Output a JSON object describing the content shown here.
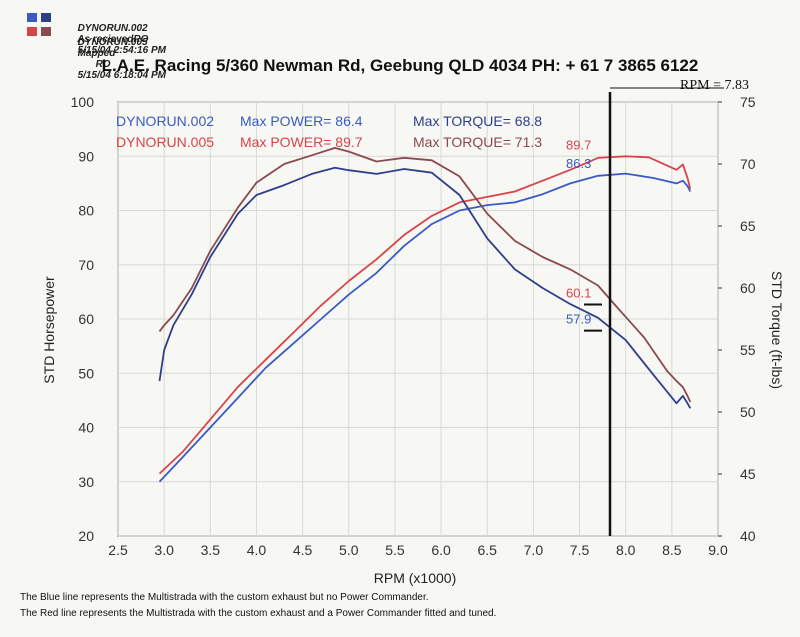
{
  "header": {
    "runs": [
      {
        "file": "DYNORUN.002",
        "note": "As recieved",
        "tag": "RO",
        "date": "5/15/04 2:54:16 PM",
        "colors": [
          "#3a5bc4",
          "#2e3f8a"
        ]
      },
      {
        "file": "DYNORUN.005",
        "note": "Mapped",
        "tag": "RO",
        "date": "5/15/04 6:18:04 PM",
        "colors": [
          "#d9434a",
          "#8a4a4e"
        ]
      }
    ],
    "title": "L.A.E. Racing 5/360 Newman Rd, Geebung QLD 4034 PH: + 61 7 3865 6122",
    "rpm_readout": "RPM = 7.83"
  },
  "legend": {
    "run002_name": "DYNORUN.002",
    "run002_power": "Max POWER= 86.4",
    "run002_torque": "Max TORQUE= 68.8",
    "run005_name": "DYNORUN.005",
    "run005_power": "Max POWER= 89.7",
    "run005_torque": "Max TORQUE= 71.3"
  },
  "footer": {
    "line1": "The Blue line represents the Multistrada with the custom exhaust but no Power Commander.",
    "line2": "The Red line represents the Multistrada with the custom exhaust and a  Power Commander fitted and tuned."
  },
  "chart_data": {
    "type": "line",
    "xlabel": "RPM (x1000)",
    "ylabel": "STD Horsepower",
    "y2label": "STD Torque (ft-lbs)",
    "xlim": [
      2.5,
      9.0
    ],
    "ylim": [
      20,
      100
    ],
    "y2lim": [
      40,
      75
    ],
    "xticks": [
      "2.5",
      "3.0",
      "3.5",
      "4.0",
      "4.5",
      "5.0",
      "5.5",
      "6.0",
      "6.5",
      "7.0",
      "7.5",
      "8.0",
      "8.5",
      "9.0"
    ],
    "yticks": [
      "20",
      "30",
      "40",
      "50",
      "60",
      "70",
      "80",
      "90",
      "100"
    ],
    "y2ticks": [
      "40",
      "45",
      "50",
      "55",
      "60",
      "65",
      "70",
      "75"
    ],
    "cursor_rpm": 7.83,
    "annotations": [
      {
        "text": "89.7",
        "x": 7.7,
        "y": 90.7,
        "color": "#d9434a"
      },
      {
        "text": "86.3",
        "x": 7.7,
        "y": 87.3,
        "color": "#3a5bc4"
      },
      {
        "text": "60.1",
        "x": 7.7,
        "y": 63.4,
        "color": "#d9434a"
      },
      {
        "text": "57.9",
        "x": 7.7,
        "y": 58.6,
        "color": "#3a5bc4"
      }
    ],
    "series": [
      {
        "name": "DYNORUN.002 Power",
        "axis": "left",
        "color": "#3a5bc4",
        "x": [
          2.95,
          3.2,
          3.5,
          3.8,
          4.1,
          4.4,
          4.7,
          5.0,
          5.3,
          5.6,
          5.9,
          6.2,
          6.5,
          6.8,
          7.1,
          7.4,
          7.7,
          8.0,
          8.3,
          8.55,
          8.62,
          8.67,
          8.7
        ],
        "y": [
          30,
          34.5,
          40,
          45.5,
          51,
          55.5,
          60,
          64.5,
          68.5,
          73.5,
          77.5,
          80,
          81,
          81.5,
          83,
          85,
          86.4,
          86.8,
          86,
          85,
          85.5,
          84.5,
          83.5
        ]
      },
      {
        "name": "DYNORUN.005 Power",
        "axis": "left",
        "color": "#d9434a",
        "x": [
          2.95,
          3.2,
          3.5,
          3.8,
          4.1,
          4.4,
          4.7,
          5.0,
          5.3,
          5.6,
          5.9,
          6.2,
          6.5,
          6.8,
          7.1,
          7.4,
          7.7,
          8.0,
          8.25,
          8.55,
          8.62,
          8.67,
          8.7
        ],
        "y": [
          31.5,
          35.5,
          41.5,
          47.5,
          52.5,
          57.5,
          62.5,
          67,
          71,
          75.5,
          79,
          81.5,
          82.5,
          83.5,
          85.5,
          87.5,
          89.7,
          90,
          89.8,
          87.5,
          88.5,
          86,
          84
        ]
      },
      {
        "name": "DYNORUN.002 Torque",
        "axis": "right",
        "color": "#2e3f8a",
        "x": [
          2.95,
          3.0,
          3.1,
          3.3,
          3.5,
          3.8,
          4.0,
          4.3,
          4.6,
          4.85,
          5.0,
          5.3,
          5.6,
          5.9,
          6.2,
          6.5,
          6.8,
          7.1,
          7.4,
          7.7,
          8.0,
          8.3,
          8.55,
          8.62,
          8.67,
          8.7
        ],
        "y": [
          52.5,
          55,
          57,
          59.5,
          62.5,
          66,
          67.5,
          68.3,
          69.2,
          69.7,
          69.5,
          69.2,
          69.6,
          69.3,
          67.5,
          64,
          61.5,
          60,
          58.7,
          57.6,
          55.8,
          53,
          50.7,
          51.3,
          50.7,
          50.3
        ]
      },
      {
        "name": "DYNORUN.005 Torque",
        "axis": "right",
        "color": "#8a4a4e",
        "x": [
          2.95,
          3.0,
          3.1,
          3.3,
          3.5,
          3.8,
          4.0,
          4.3,
          4.6,
          4.85,
          5.0,
          5.3,
          5.6,
          5.9,
          6.2,
          6.5,
          6.8,
          7.1,
          7.4,
          7.7,
          7.9,
          8.2,
          8.45,
          8.55,
          8.62,
          8.67,
          8.7
        ],
        "y": [
          56.5,
          57,
          57.8,
          60,
          63,
          66.5,
          68.5,
          70,
          70.7,
          71.3,
          71,
          70.2,
          70.5,
          70.3,
          69,
          66,
          63.8,
          62.5,
          61.5,
          60.2,
          58.5,
          56,
          53.3,
          52.5,
          52,
          51.3,
          50.8
        ]
      }
    ]
  }
}
